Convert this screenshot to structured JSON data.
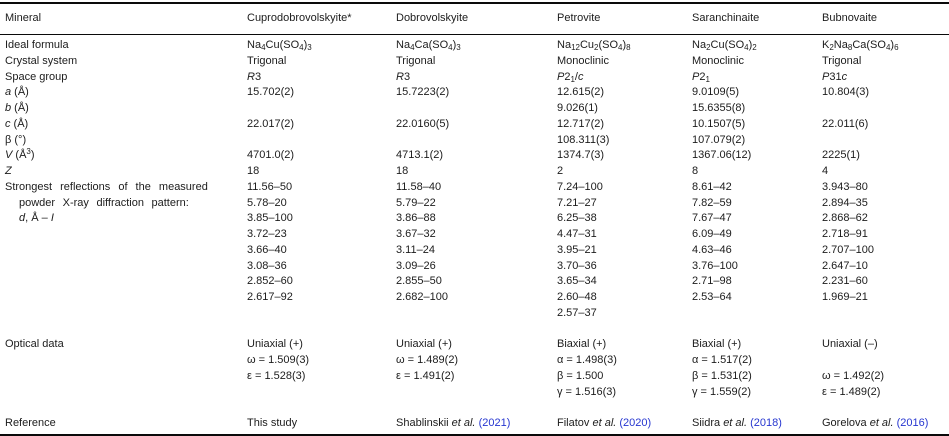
{
  "colors": {
    "text": "#1c1c1c",
    "rule": "#0a0a0a",
    "citation_link": "#2636d0",
    "background": "#ffffff"
  },
  "table": {
    "columns": [
      {
        "label": "Mineral"
      },
      {
        "label": "Cuprodobrovolskyite*"
      },
      {
        "label": "Dobrovolskyite"
      },
      {
        "label": "Petrovite"
      },
      {
        "label": "Saranchinaite"
      },
      {
        "label": "Bubnovaite"
      }
    ],
    "lines": [
      {
        "cells": [
          "Ideal formula",
          "Na<sub>4</sub>Cu(SO<sub>4</sub>)<sub>3</sub>",
          "Na<sub>4</sub>Ca(SO<sub>4</sub>)<sub>3</sub>",
          "Na<sub>12</sub>Cu<sub>2</sub>(SO<sub>4</sub>)<sub>8</sub>",
          "Na<sub>2</sub>Cu(SO<sub>4</sub>)<sub>2</sub>",
          "K<sub>2</sub>Na<sub>8</sub>Ca(SO<sub>4</sub>)<sub>6</sub>"
        ]
      },
      {
        "cells": [
          "Crystal system",
          "Trigonal",
          "Trigonal",
          "Monoclinic",
          "Monoclinic",
          "Trigonal"
        ]
      },
      {
        "cells": [
          "Space group",
          "<i>R</i>3",
          "<i>R</i>3",
          "<i>P</i>2<sub>1</sub>/<i>c</i>",
          "<i>P</i>2<sub>1</sub>",
          "<i>P</i>31<i>c</i>"
        ]
      },
      {
        "cells": [
          "<i>a</i> (Å)",
          "15.702(2)",
          "15.7223(2)",
          "12.615(2)",
          "9.0109(5)",
          "10.804(3)"
        ]
      },
      {
        "cells": [
          "<i>b</i> (Å)",
          "",
          "",
          "9.026(1)",
          "15.6355(8)",
          ""
        ]
      },
      {
        "cells": [
          "<i>c</i> (Å)",
          "22.017(2)",
          "22.0160(5)",
          "12.717(2)",
          "10.1507(5)",
          "22.011(6)"
        ]
      },
      {
        "cells": [
          "β (°)",
          "",
          "",
          "108.311(3)",
          "107.079(2)",
          ""
        ]
      },
      {
        "cells": [
          "<i>V</i> (Å<sup>3</sup>)",
          "4701.0(2)",
          "4713.1(2)",
          "1374.7(3)",
          "1367.06(12)",
          "2225(1)"
        ]
      },
      {
        "cells": [
          "<i>Z</i>",
          "18",
          "18",
          "2",
          "8",
          "4"
        ]
      },
      {
        "justify": 1,
        "cells": [
          "Strongest reflections of the measured",
          "11.56–50",
          "11.58–40",
          "7.24–100",
          "8.61–42",
          "3.943–80"
        ]
      },
      {
        "indent": true,
        "justify": 2,
        "cells": [
          "powder X-ray diffraction pattern:",
          "5.78–20",
          "5.79–22",
          "7.21–27",
          "7.82–59",
          "2.894–35"
        ]
      },
      {
        "indent": true,
        "cells": [
          "<i>d</i>, Å – <i>I</i>",
          "3.85–100",
          "3.86–88",
          "6.25–38",
          "7.67–47",
          "2.868–62"
        ]
      },
      {
        "cells": [
          "",
          "3.72–23",
          "3.67–32",
          "4.47–31",
          "6.09–49",
          "2.718–91"
        ]
      },
      {
        "cells": [
          "",
          "3.66–40",
          "3.11–24",
          "3.95–21",
          "4.63–46",
          "2.707–100"
        ]
      },
      {
        "cells": [
          "",
          "3.08–36",
          "3.09–26",
          "3.70–36",
          "3.76–100",
          "2.647–10"
        ]
      },
      {
        "cells": [
          "",
          "2.852–60",
          "2.855–50",
          "3.65–34",
          "2.71–98",
          "2.231–60"
        ]
      },
      {
        "cells": [
          "",
          "2.617–92",
          "2.682–100",
          "2.60–48",
          "2.53–64",
          "1.969–21"
        ]
      },
      {
        "cells": [
          "",
          "",
          "",
          "2.57–37",
          "",
          ""
        ]
      },
      {
        "cells": [
          "",
          "",
          "",
          "",
          "",
          ""
        ]
      },
      {
        "cells": [
          "Optical data",
          "Uniaxial (+)",
          "Uniaxial (+)",
          "Biaxial (+)",
          "Biaxial (+)",
          "Uniaxial (–)"
        ]
      },
      {
        "cells": [
          "",
          "ω = 1.509(3)",
          "ω = 1.489(2)",
          "α = 1.498(3)",
          "α = 1.517(2)",
          ""
        ]
      },
      {
        "cells": [
          "",
          "ε = 1.528(3)",
          "ε = 1.491(2)",
          "β = 1.500",
          "β = 1.531(2)",
          "ω = 1.492(2)"
        ]
      },
      {
        "cells": [
          "",
          "",
          "",
          "γ = 1.516(3)",
          "γ = 1.559(2)",
          "ε = 1.489(2)"
        ]
      },
      {
        "cells": [
          "",
          "",
          "",
          "",
          "",
          ""
        ]
      },
      {
        "cells": [
          "Reference",
          "This study",
          "Shablinskii <i>et al.</i> <a>(2021)</a>",
          "Filatov <i>et al.</i> <a>(2020)</a>",
          "Siidra <i>et al.</i> <a>(2018)</a>",
          "Gorelova <i>et al.</i> <a>(2016)</a>"
        ]
      }
    ]
  }
}
